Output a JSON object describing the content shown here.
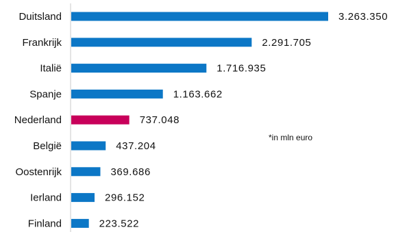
{
  "chart_data": {
    "type": "bar",
    "orientation": "horizontal",
    "categories": [
      "Duitsland",
      "Frankrijk",
      "Italië",
      "Spanje",
      "Nederland",
      "België",
      "Oostenrijk",
      "Ierland",
      "Finland"
    ],
    "values": [
      3263350,
      2291705,
      1716935,
      1163662,
      737048,
      437204,
      369686,
      296152,
      223522
    ],
    "value_labels": [
      "3.263.350",
      "2.291.705",
      "1.716.935",
      "1.163.662",
      "737.048",
      "437.204",
      "369.686",
      "296.152",
      "223.522"
    ],
    "colors": [
      "#0c77c6",
      "#0c77c6",
      "#0c77c6",
      "#0c77c6",
      "#c8005a",
      "#0c77c6",
      "#0c77c6",
      "#0c77c6",
      "#0c77c6"
    ],
    "xlim": [
      0,
      3263350
    ],
    "grid": false,
    "note": "*in mln euro",
    "title": "",
    "xlabel": "",
    "ylabel": ""
  },
  "colors": {
    "default_bar": "#0c77c6",
    "highlight_bar": "#c8005a",
    "axis": "#c8c8c8"
  }
}
